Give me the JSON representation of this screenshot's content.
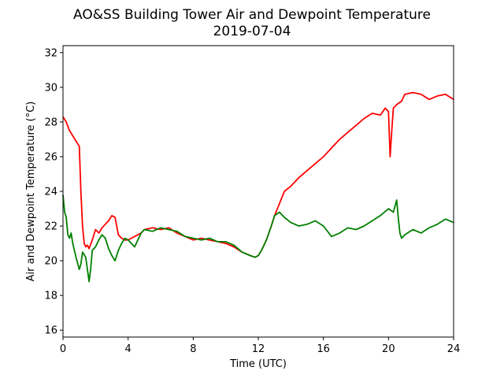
{
  "chart_data": {
    "type": "line",
    "title": "AO&SS Building Tower Air and Dewpoint Temperature",
    "subtitle": "2019-07-04",
    "xlabel": "Time (UTC)",
    "ylabel": "Air and Dewpoint Temperature (°C)",
    "xlim": [
      0,
      24
    ],
    "ylim": [
      15.6,
      32.4
    ],
    "xticks": [
      0,
      4,
      8,
      12,
      16,
      20,
      24
    ],
    "yticks": [
      16,
      18,
      20,
      22,
      24,
      26,
      28,
      30,
      32
    ],
    "grid": false,
    "series": [
      {
        "color": "#ff0000",
        "x": [
          0,
          0.2,
          0.4,
          0.6,
          0.8,
          1.0,
          1.1,
          1.2,
          1.3,
          1.4,
          1.5,
          1.6,
          1.8,
          2.0,
          2.2,
          2.4,
          2.6,
          2.8,
          3.0,
          3.2,
          3.4,
          3.6,
          3.8,
          4.0,
          4.2,
          4.4,
          4.6,
          4.8,
          5.0,
          5.5,
          6.0,
          6.5,
          7.0,
          7.5,
          8.0,
          8.5,
          9.0,
          9.5,
          10.0,
          10.5,
          11.0,
          11.5,
          11.8,
          12.0,
          12.2,
          12.5,
          12.8,
          13.0,
          13.3,
          13.6,
          14.0,
          14.5,
          15.0,
          15.5,
          16.0,
          16.5,
          17.0,
          17.5,
          18.0,
          18.5,
          19.0,
          19.5,
          19.8,
          20.0,
          20.1,
          20.2,
          20.3,
          20.5,
          20.8,
          21.0,
          21.5,
          22.0,
          22.5,
          23.0,
          23.5,
          24.0
        ],
        "y": [
          28.3,
          28.0,
          27.5,
          27.2,
          26.9,
          26.6,
          24.0,
          22.0,
          21.0,
          20.8,
          20.9,
          20.7,
          21.2,
          21.8,
          21.6,
          21.9,
          22.1,
          22.3,
          22.6,
          22.5,
          21.5,
          21.3,
          21.2,
          21.2,
          21.3,
          21.4,
          21.5,
          21.6,
          21.8,
          21.9,
          21.8,
          21.9,
          21.6,
          21.4,
          21.2,
          21.3,
          21.2,
          21.1,
          21.0,
          20.8,
          20.5,
          20.3,
          20.2,
          20.3,
          20.6,
          21.2,
          22.0,
          22.6,
          23.3,
          24.0,
          24.3,
          24.8,
          25.2,
          25.6,
          26.0,
          26.5,
          27.0,
          27.4,
          27.8,
          28.2,
          28.5,
          28.4,
          28.8,
          28.6,
          26.0,
          27.5,
          28.8,
          29.0,
          29.2,
          29.6,
          29.7,
          29.6,
          29.3,
          29.5,
          29.6,
          29.3
        ]
      },
      {
        "color": "#008000",
        "x": [
          0,
          0.1,
          0.2,
          0.3,
          0.4,
          0.5,
          0.6,
          0.8,
          1.0,
          1.1,
          1.2,
          1.4,
          1.6,
          1.7,
          1.8,
          2.0,
          2.2,
          2.4,
          2.6,
          2.8,
          3.0,
          3.2,
          3.4,
          3.6,
          3.8,
          4.0,
          4.2,
          4.4,
          4.6,
          4.8,
          5.0,
          5.5,
          6.0,
          6.5,
          7.0,
          7.5,
          8.0,
          8.5,
          9.0,
          9.5,
          10.0,
          10.5,
          11.0,
          11.5,
          11.8,
          12.0,
          12.2,
          12.5,
          12.8,
          13.0,
          13.3,
          13.6,
          14.0,
          14.5,
          15.0,
          15.5,
          16.0,
          16.5,
          17.0,
          17.5,
          18.0,
          18.5,
          19.0,
          19.5,
          20.0,
          20.3,
          20.5,
          20.6,
          20.7,
          20.8,
          21.0,
          21.5,
          22.0,
          22.5,
          23.0,
          23.5,
          24.0
        ],
        "y": [
          23.8,
          22.8,
          22.5,
          21.5,
          21.3,
          21.6,
          21.0,
          20.2,
          19.5,
          19.8,
          20.5,
          20.2,
          18.8,
          19.5,
          20.6,
          20.8,
          21.2,
          21.5,
          21.3,
          20.7,
          20.3,
          20.0,
          20.6,
          21.0,
          21.3,
          21.2,
          21.0,
          20.8,
          21.2,
          21.6,
          21.8,
          21.7,
          21.9,
          21.8,
          21.7,
          21.4,
          21.3,
          21.2,
          21.3,
          21.1,
          21.1,
          20.9,
          20.5,
          20.3,
          20.2,
          20.3,
          20.6,
          21.2,
          22.0,
          22.6,
          22.8,
          22.5,
          22.2,
          22.0,
          22.1,
          22.3,
          22.0,
          21.4,
          21.6,
          21.9,
          21.8,
          22.0,
          22.3,
          22.6,
          23.0,
          22.8,
          23.5,
          22.5,
          21.6,
          21.3,
          21.5,
          21.8,
          21.6,
          21.9,
          22.1,
          22.4,
          22.2
        ]
      }
    ]
  }
}
